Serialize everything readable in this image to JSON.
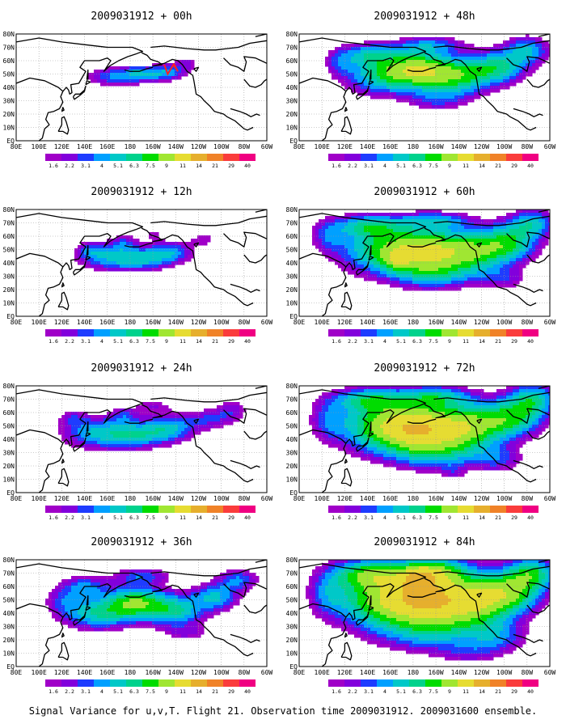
{
  "figure": {
    "caption": "Signal Variance for u,v,T. Flight 21. Observation time 2009031912. 2009031600 ensemble.",
    "palette": {
      "levels": [
        "1.6",
        "2.2",
        "3.1",
        "4",
        "5.1",
        "6.3",
        "7.5",
        "9",
        "11",
        "14",
        "21",
        "29",
        "40"
      ],
      "colors": [
        "#a000c8",
        "#8200dc",
        "#1e3cff",
        "#00a0ff",
        "#00c8c8",
        "#00d28c",
        "#00dc00",
        "#a0e632",
        "#e6dc32",
        "#e6af2d",
        "#f08228",
        "#fa3c3c",
        "#f00082"
      ]
    },
    "colors": {
      "coastline": "#000000",
      "track": "#ff2020",
      "grid": "#999999",
      "background": "#ffffff"
    },
    "axis_labels": {
      "x": [
        "80E",
        "100E",
        "120E",
        "140E",
        "160E",
        "180",
        "160W",
        "140W",
        "120W",
        "100W",
        "80W",
        "60W"
      ],
      "y": [
        "80N",
        "70N",
        "60N",
        "50N",
        "40N",
        "30N",
        "20N",
        "10N",
        "EQ"
      ]
    }
  },
  "chart_data": [
    {
      "type": "heatmap",
      "title": "2009031912 + 00h",
      "xlim": [
        80,
        300
      ],
      "ylim": [
        0,
        80
      ],
      "blobs": [
        [
          165,
          48,
          24,
          7,
          3.8
        ],
        [
          195,
          50,
          22,
          6,
          4.2
        ],
        [
          215,
          52,
          14,
          6,
          3.0
        ],
        [
          230,
          58,
          12,
          6,
          2.2
        ],
        [
          185,
          53,
          6,
          3,
          1.4
        ]
      ],
      "track": [
        [
          210,
          57
        ],
        [
          213,
          50
        ],
        [
          218,
          57
        ],
        [
          222,
          52
        ],
        [
          218,
          58
        ]
      ]
    },
    {
      "type": "heatmap",
      "title": "2009031912 + 12h",
      "xlim": [
        80,
        300
      ],
      "ylim": [
        0,
        80
      ],
      "blobs": [
        [
          160,
          45,
          28,
          10,
          4.5
        ],
        [
          190,
          42,
          25,
          8,
          4.2
        ],
        [
          215,
          48,
          20,
          8,
          4.5
        ],
        [
          175,
          55,
          12,
          6,
          2.5
        ],
        [
          245,
          58,
          14,
          6,
          2.0
        ],
        [
          145,
          50,
          10,
          6,
          2.0
        ],
        [
          200,
          62,
          12,
          5,
          1.6
        ]
      ]
    },
    {
      "type": "heatmap",
      "title": "2009031912 + 24h",
      "xlim": [
        80,
        300
      ],
      "ylim": [
        0,
        80
      ],
      "blobs": [
        [
          150,
          45,
          30,
          12,
          5.0
        ],
        [
          185,
          43,
          25,
          10,
          4.8
        ],
        [
          215,
          48,
          22,
          10,
          5.0
        ],
        [
          250,
          55,
          20,
          8,
          3.0
        ],
        [
          175,
          58,
          12,
          6,
          2.5
        ],
        [
          270,
          62,
          14,
          8,
          2.5
        ],
        [
          130,
          56,
          12,
          6,
          2.0
        ],
        [
          200,
          65,
          18,
          6,
          2.0
        ]
      ]
    },
    {
      "type": "heatmap",
      "title": "2009031912 + 36h",
      "xlim": [
        80,
        300
      ],
      "ylim": [
        0,
        80
      ],
      "blobs": [
        [
          150,
          40,
          30,
          12,
          6.0
        ],
        [
          185,
          48,
          25,
          12,
          8.0
        ],
        [
          220,
          42,
          25,
          12,
          6.0
        ],
        [
          255,
          52,
          20,
          10,
          5.0
        ],
        [
          140,
          60,
          20,
          8,
          4.0
        ],
        [
          190,
          68,
          25,
          6,
          3.5
        ],
        [
          275,
          65,
          18,
          8,
          4.0
        ],
        [
          120,
          50,
          15,
          10,
          2.5
        ],
        [
          230,
          25,
          20,
          6,
          2.0
        ]
      ]
    },
    {
      "type": "heatmap",
      "title": "2009031912 + 48h",
      "xlim": [
        80,
        300
      ],
      "ylim": [
        0,
        80
      ],
      "blobs": [
        [
          150,
          50,
          30,
          15,
          6.0
        ],
        [
          185,
          53,
          28,
          14,
          9.0
        ],
        [
          220,
          48,
          28,
          14,
          7.0
        ],
        [
          255,
          55,
          25,
          12,
          6.0
        ],
        [
          140,
          65,
          25,
          8,
          4.0
        ],
        [
          195,
          72,
          30,
          6,
          3.5
        ],
        [
          280,
          68,
          20,
          10,
          5.0
        ],
        [
          115,
          58,
          12,
          10,
          2.5
        ],
        [
          200,
          30,
          25,
          8,
          2.5
        ]
      ]
    },
    {
      "type": "heatmap",
      "title": "2009031912 + 60h",
      "xlim": [
        80,
        300
      ],
      "ylim": [
        0,
        80
      ],
      "blobs": [
        [
          150,
          50,
          35,
          18,
          7.0
        ],
        [
          190,
          48,
          30,
          18,
          9.0
        ],
        [
          230,
          48,
          30,
          16,
          8.0
        ],
        [
          265,
          55,
          25,
          14,
          6.5
        ],
        [
          140,
          68,
          30,
          8,
          5.0
        ],
        [
          200,
          72,
          30,
          6,
          4.0
        ],
        [
          285,
          70,
          20,
          10,
          5.0
        ],
        [
          105,
          60,
          14,
          12,
          3.0
        ],
        [
          200,
          30,
          35,
          10,
          3.0
        ],
        [
          260,
          28,
          20,
          8,
          2.5
        ],
        [
          165,
          42,
          12,
          8,
          3.0
        ]
      ]
    },
    {
      "type": "heatmap",
      "title": "2009031912 + 72h",
      "xlim": [
        80,
        300
      ],
      "ylim": [
        0,
        80
      ],
      "blobs": [
        [
          150,
          50,
          35,
          20,
          8.0
        ],
        [
          185,
          48,
          30,
          18,
          10.0
        ],
        [
          225,
          48,
          30,
          18,
          9.0
        ],
        [
          265,
          55,
          28,
          14,
          7.0
        ],
        [
          140,
          70,
          30,
          8,
          5.0
        ],
        [
          200,
          72,
          30,
          8,
          5.0
        ],
        [
          285,
          70,
          22,
          12,
          6.0
        ],
        [
          105,
          55,
          16,
          16,
          3.0
        ],
        [
          200,
          28,
          35,
          12,
          3.5
        ],
        [
          255,
          25,
          22,
          10,
          3.0
        ],
        [
          215,
          15,
          10,
          6,
          1.6
        ]
      ]
    },
    {
      "type": "heatmap",
      "title": "2009031912 + 84h",
      "xlim": [
        80,
        300
      ],
      "ylim": [
        0,
        80
      ],
      "blobs": [
        [
          150,
          50,
          35,
          22,
          9.0
        ],
        [
          190,
          52,
          30,
          20,
          11.0
        ],
        [
          230,
          48,
          32,
          20,
          9.5
        ],
        [
          265,
          55,
          28,
          16,
          7.5
        ],
        [
          140,
          70,
          30,
          10,
          6.0
        ],
        [
          200,
          72,
          30,
          10,
          6.0
        ],
        [
          285,
          70,
          22,
          12,
          6.5
        ],
        [
          105,
          55,
          18,
          18,
          3.5
        ],
        [
          195,
          25,
          40,
          15,
          4.0
        ],
        [
          255,
          22,
          25,
          12,
          3.5
        ],
        [
          230,
          10,
          25,
          8,
          2.0
        ],
        [
          185,
          65,
          12,
          8,
          5.0
        ]
      ]
    }
  ]
}
